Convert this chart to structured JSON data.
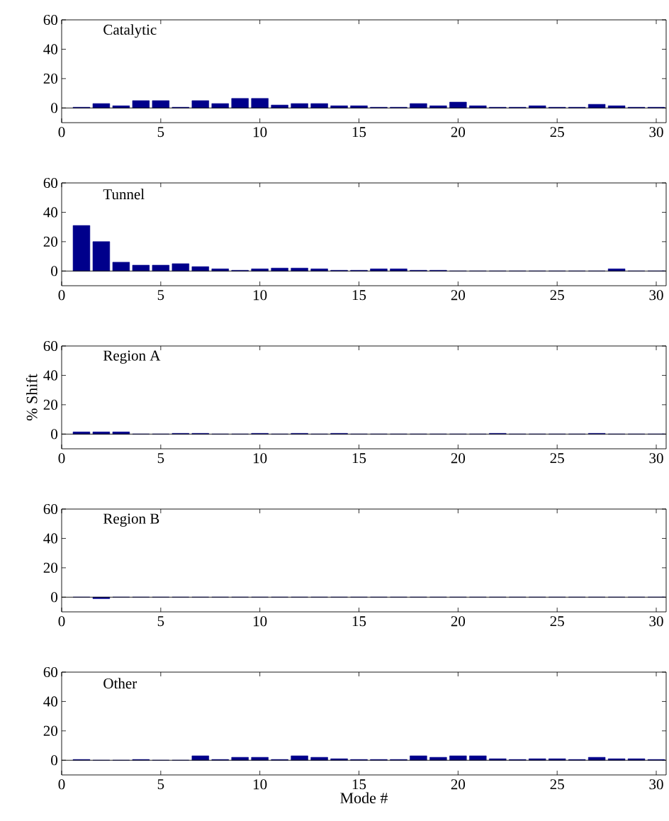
{
  "chart_data": [
    {
      "type": "bar",
      "title": "Catalytic",
      "x": [
        1,
        2,
        3,
        4,
        5,
        6,
        7,
        8,
        9,
        10,
        11,
        12,
        13,
        14,
        15,
        16,
        17,
        18,
        19,
        20,
        21,
        22,
        23,
        24,
        25,
        26,
        27,
        28,
        29,
        30
      ],
      "values": [
        0.5,
        3,
        1.5,
        5,
        5,
        0.5,
        5,
        3,
        6.5,
        6.5,
        2,
        3,
        3,
        1.5,
        1.5,
        0.5,
        0.5,
        3,
        1.5,
        4,
        1.5,
        0.5,
        0.5,
        1.5,
        0.5,
        0.5,
        2.5,
        1.5,
        0.5,
        0.5
      ],
      "color": "#00008b",
      "xlim": [
        0,
        30.5
      ],
      "ylim": [
        -10,
        60
      ],
      "xticks": [
        0,
        5,
        10,
        15,
        20,
        25,
        30
      ],
      "yticks": [
        0,
        20,
        40,
        60
      ]
    },
    {
      "type": "bar",
      "title": "Tunnel",
      "x": [
        1,
        2,
        3,
        4,
        5,
        6,
        7,
        8,
        9,
        10,
        11,
        12,
        13,
        14,
        15,
        16,
        17,
        18,
        19,
        20,
        21,
        22,
        23,
        24,
        25,
        26,
        27,
        28,
        29,
        30
      ],
      "values": [
        31,
        20,
        6,
        4,
        4,
        5,
        3,
        1.5,
        0.5,
        1.5,
        2,
        2,
        1.5,
        0.5,
        0.5,
        1.5,
        1.5,
        0.5,
        0.5,
        0,
        0,
        0,
        0,
        0,
        0,
        0,
        0,
        1.5,
        0,
        0
      ],
      "color": "#00008b",
      "xlim": [
        0,
        30.5
      ],
      "ylim": [
        -10,
        60
      ],
      "xticks": [
        0,
        5,
        10,
        15,
        20,
        25,
        30
      ],
      "yticks": [
        0,
        20,
        40,
        60
      ]
    },
    {
      "type": "bar",
      "title": "Region A",
      "ylabel": "% Shift",
      "x": [
        1,
        2,
        3,
        4,
        5,
        6,
        7,
        8,
        9,
        10,
        11,
        12,
        13,
        14,
        15,
        16,
        17,
        18,
        19,
        20,
        21,
        22,
        23,
        24,
        25,
        26,
        27,
        28,
        29,
        30
      ],
      "values": [
        1.5,
        1.5,
        1.5,
        0,
        0,
        0.5,
        0.5,
        0,
        0,
        0.5,
        0,
        0.5,
        0,
        0.5,
        0,
        0,
        0,
        0,
        0,
        0,
        0,
        0.5,
        0,
        0,
        0,
        0,
        0.5,
        0,
        0,
        0
      ],
      "color": "#00008b",
      "xlim": [
        0,
        30.5
      ],
      "ylim": [
        -10,
        60
      ],
      "xticks": [
        0,
        5,
        10,
        15,
        20,
        25,
        30
      ],
      "yticks": [
        0,
        20,
        40,
        60
      ]
    },
    {
      "type": "bar",
      "title": "Region B",
      "x": [
        1,
        2,
        3,
        4,
        5,
        6,
        7,
        8,
        9,
        10,
        11,
        12,
        13,
        14,
        15,
        16,
        17,
        18,
        19,
        20,
        21,
        22,
        23,
        24,
        25,
        26,
        27,
        28,
        29,
        30
      ],
      "values": [
        0,
        -1,
        0,
        0,
        0,
        0,
        0,
        0,
        0,
        0,
        0,
        0,
        0,
        0,
        0,
        0,
        0,
        0,
        0,
        0,
        0,
        0,
        0,
        0,
        0,
        0,
        0,
        0,
        0,
        0
      ],
      "color": "#00008b",
      "xlim": [
        0,
        30.5
      ],
      "ylim": [
        -10,
        60
      ],
      "xticks": [
        0,
        5,
        10,
        15,
        20,
        25,
        30
      ],
      "yticks": [
        0,
        20,
        40,
        60
      ]
    },
    {
      "type": "bar",
      "title": "Other",
      "xlabel": "Mode #",
      "x": [
        1,
        2,
        3,
        4,
        5,
        6,
        7,
        8,
        9,
        10,
        11,
        12,
        13,
        14,
        15,
        16,
        17,
        18,
        19,
        20,
        21,
        22,
        23,
        24,
        25,
        26,
        27,
        28,
        29,
        30
      ],
      "values": [
        0.5,
        0,
        0,
        0.5,
        0,
        0,
        3,
        0.5,
        2,
        2,
        0.5,
        3,
        2,
        1,
        0.5,
        0.5,
        0.5,
        3,
        2,
        3,
        3,
        1,
        0.5,
        1,
        1,
        0.5,
        2,
        1,
        1,
        0.5
      ],
      "color": "#00008b",
      "xlim": [
        0,
        30.5
      ],
      "ylim": [
        -10,
        60
      ],
      "xticks": [
        0,
        5,
        10,
        15,
        20,
        25,
        30
      ],
      "yticks": [
        0,
        20,
        40,
        60
      ]
    }
  ]
}
